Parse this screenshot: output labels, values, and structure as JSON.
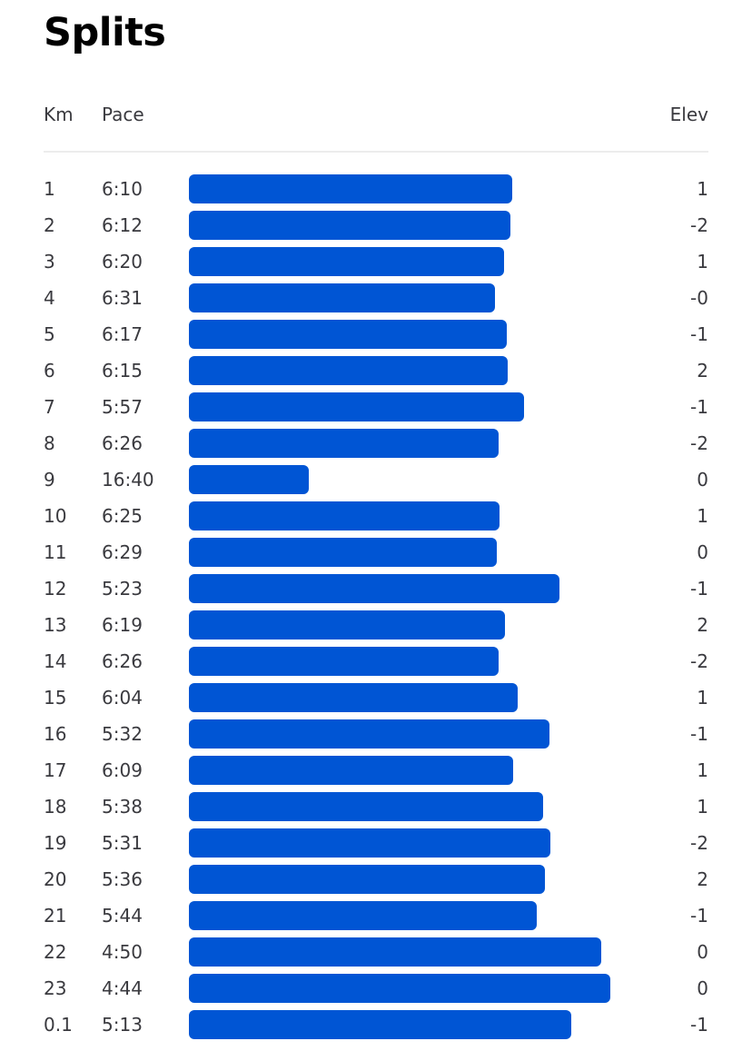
{
  "title": "Splits",
  "columns": {
    "km": "Km",
    "pace": "Pace",
    "elev": "Elev"
  },
  "colors": {
    "bar": "#0055d4",
    "text": "#3a3a3f",
    "divider": "#ececec"
  },
  "splits": [
    {
      "km": "1",
      "pace": "6:10",
      "elev": "1"
    },
    {
      "km": "2",
      "pace": "6:12",
      "elev": "-2"
    },
    {
      "km": "3",
      "pace": "6:20",
      "elev": "1"
    },
    {
      "km": "4",
      "pace": "6:31",
      "elev": "-0"
    },
    {
      "km": "5",
      "pace": "6:17",
      "elev": "-1"
    },
    {
      "km": "6",
      "pace": "6:15",
      "elev": "2"
    },
    {
      "km": "7",
      "pace": "5:57",
      "elev": "-1"
    },
    {
      "km": "8",
      "pace": "6:26",
      "elev": "-2"
    },
    {
      "km": "9",
      "pace": "16:40",
      "elev": "0"
    },
    {
      "km": "10",
      "pace": "6:25",
      "elev": "1"
    },
    {
      "km": "11",
      "pace": "6:29",
      "elev": "0"
    },
    {
      "km": "12",
      "pace": "5:23",
      "elev": "-1"
    },
    {
      "km": "13",
      "pace": "6:19",
      "elev": "2"
    },
    {
      "km": "14",
      "pace": "6:26",
      "elev": "-2"
    },
    {
      "km": "15",
      "pace": "6:04",
      "elev": "1"
    },
    {
      "km": "16",
      "pace": "5:32",
      "elev": "-1"
    },
    {
      "km": "17",
      "pace": "6:09",
      "elev": "1"
    },
    {
      "km": "18",
      "pace": "5:38",
      "elev": "1"
    },
    {
      "km": "19",
      "pace": "5:31",
      "elev": "-2"
    },
    {
      "km": "20",
      "pace": "5:36",
      "elev": "2"
    },
    {
      "km": "21",
      "pace": "5:44",
      "elev": "-1"
    },
    {
      "km": "22",
      "pace": "4:50",
      "elev": "0"
    },
    {
      "km": "23",
      "pace": "4:44",
      "elev": "0"
    },
    {
      "km": "0.1",
      "pace": "5:13",
      "elev": "-1"
    }
  ]
}
